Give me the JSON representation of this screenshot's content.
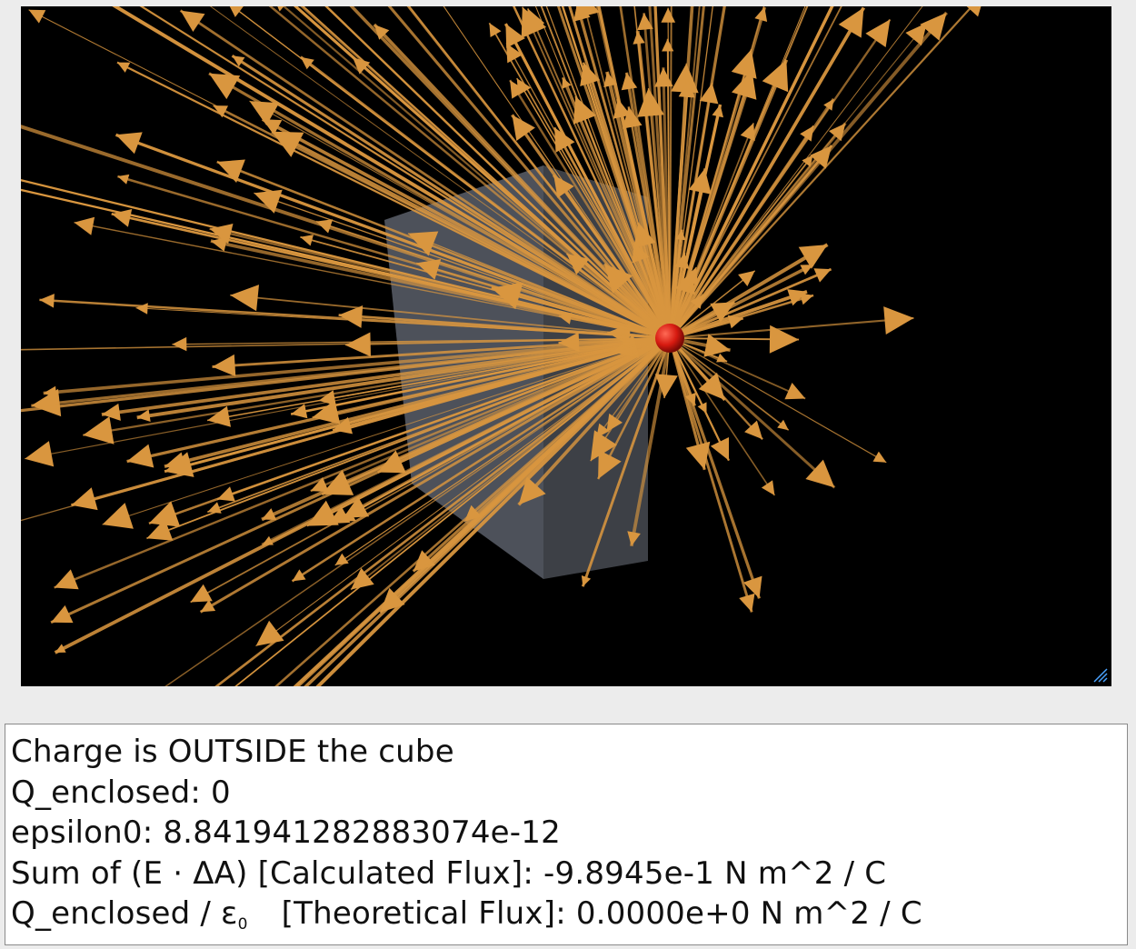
{
  "scene": {
    "background": "#000000",
    "arrow_color": "#d9963f",
    "cube_color": "#8a8f9a",
    "charge_color": "#d61a10",
    "icons": [
      "resize-handle-icon"
    ]
  },
  "output": {
    "line1": "Charge is OUTSIDE the cube",
    "line2": "Q_enclosed: 0",
    "line3": "epsilon0: 8.841941282883074e-12",
    "line4": "Sum of (E · ΔA) [Calculated Flux]: -9.8945e-1 N m^2 / C",
    "line5_prefix": "Q_enclosed / ε",
    "line5_sub": "0",
    "line5_suffix": "[Theoretical Flux]: 0.0000e+0 N m^2 / C"
  }
}
